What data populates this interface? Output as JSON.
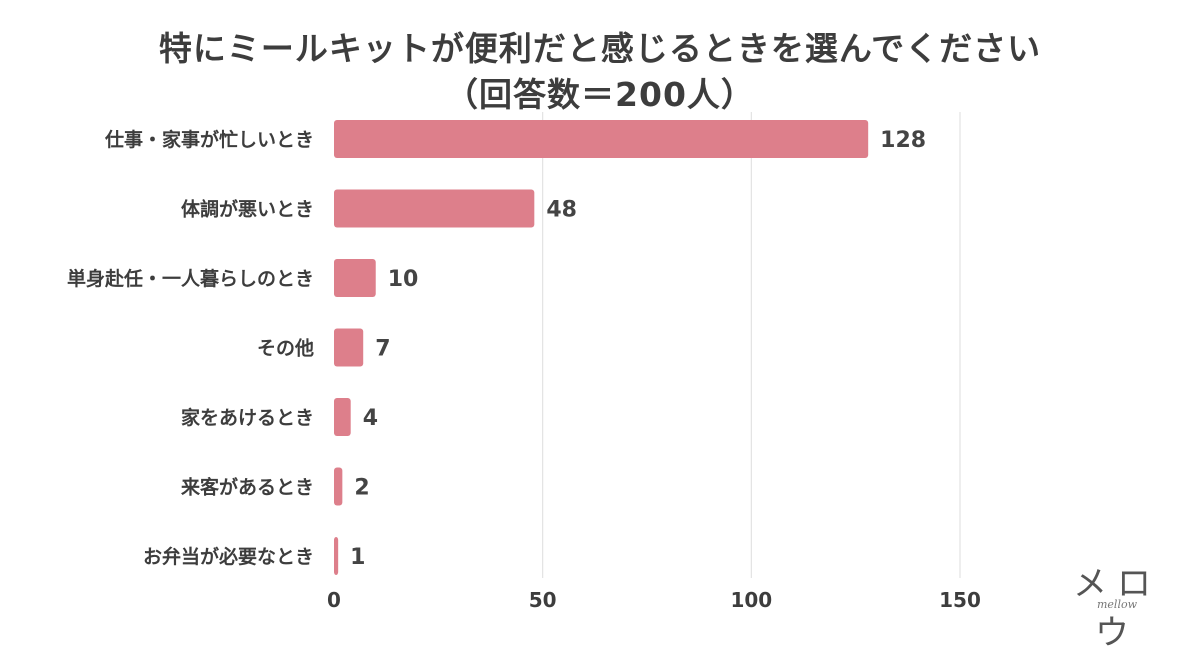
{
  "chart_data": {
    "type": "bar",
    "orientation": "horizontal",
    "title": "特にミールキットが便利だと感じるときを選んでください",
    "subtitle": "（回答数＝200人）",
    "categories": [
      "仕事・家事が忙しいとき",
      "体調が悪いとき",
      "単身赴任・一人暮らしのとき",
      "その他",
      "家をあけるとき",
      "来客があるとき",
      "お弁当が必要なとき"
    ],
    "values": [
      128,
      48,
      10,
      7,
      4,
      2,
      1
    ],
    "xlim": [
      0,
      150
    ],
    "xticks": [
      "0",
      "50",
      "100",
      "150"
    ],
    "xtick_values": [
      0,
      50,
      100,
      150
    ],
    "grid": true,
    "legend": "none",
    "bar_color": "#dd7f8b",
    "grid_color": "#e3e3e3"
  },
  "logo": {
    "kana": "メロウ",
    "sub": "mellow"
  }
}
